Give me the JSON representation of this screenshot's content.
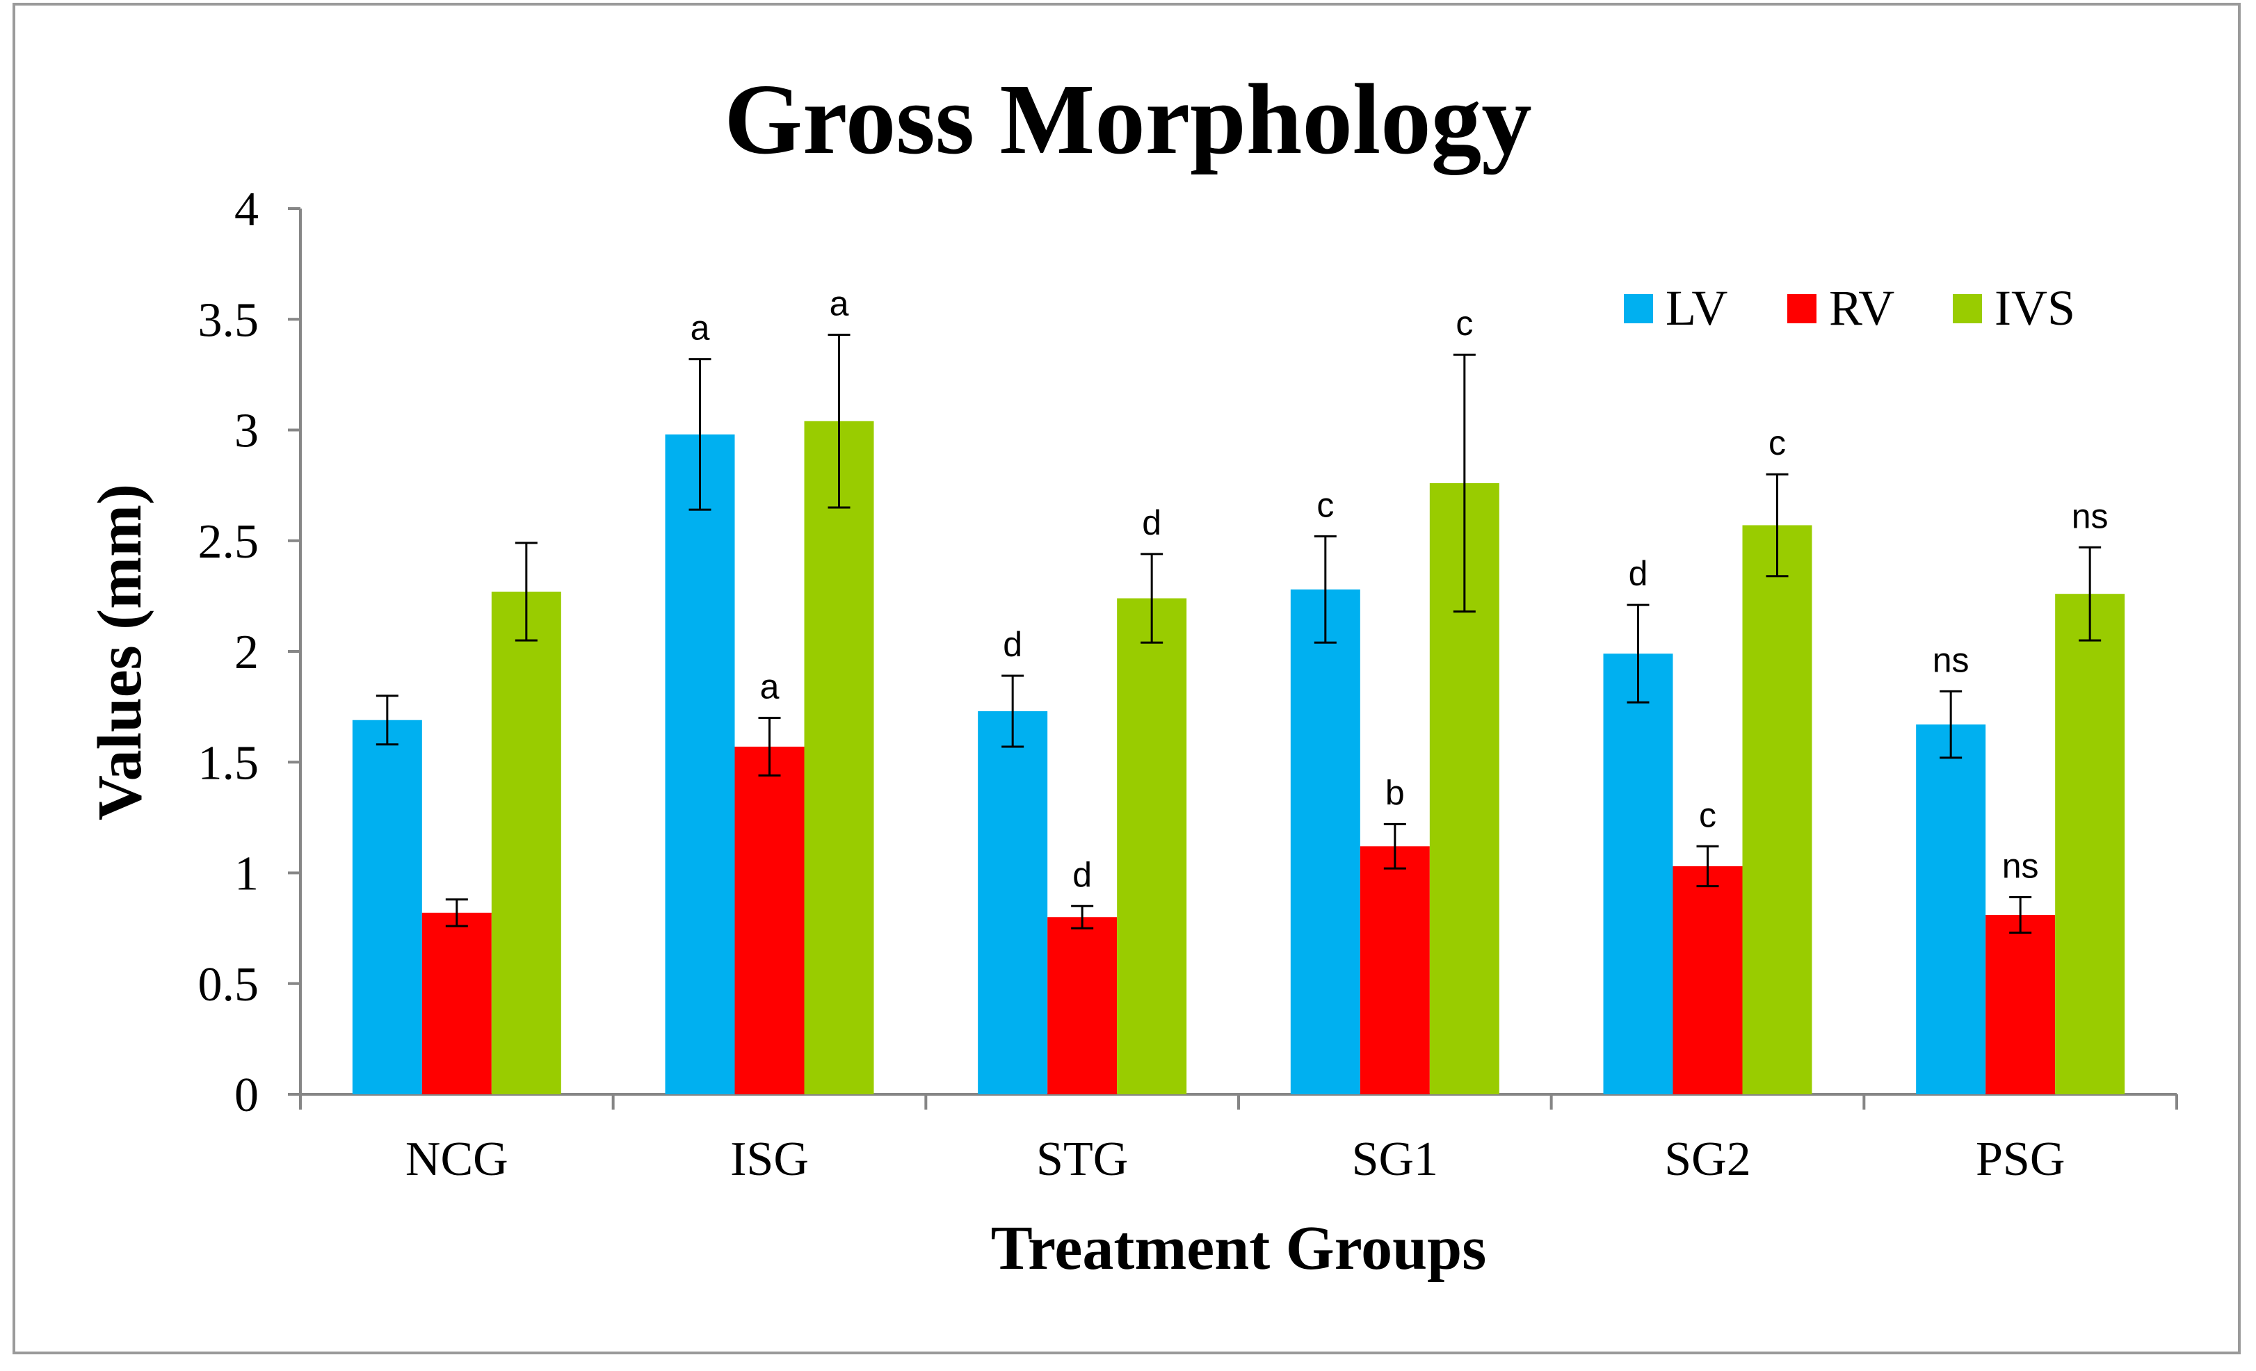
{
  "chart_data": {
    "type": "bar",
    "title": "Gross Morphology",
    "xlabel": "Treatment Groups",
    "ylabel": "Values (mm)",
    "ylim": [
      0,
      4
    ],
    "yticks": [
      "0",
      "0.5",
      "1",
      "1.5",
      "2",
      "2.5",
      "3",
      "3.5",
      "4"
    ],
    "categories": [
      "NCG",
      "ISG",
      "STG",
      "SG1",
      "SG2",
      "PSG"
    ],
    "grid": false,
    "legend_position": "top-right",
    "series": [
      {
        "name": "LV",
        "color": "#00B0F0",
        "values": [
          1.69,
          2.98,
          1.73,
          2.28,
          1.99,
          1.67
        ],
        "errors": [
          0.11,
          0.34,
          0.16,
          0.24,
          0.22,
          0.15
        ],
        "labels": [
          "",
          "a",
          "d",
          "c",
          "d",
          "ns"
        ]
      },
      {
        "name": "RV",
        "color": "#FF0000",
        "values": [
          0.82,
          1.57,
          0.8,
          1.12,
          1.03,
          0.81
        ],
        "errors": [
          0.06,
          0.13,
          0.05,
          0.1,
          0.09,
          0.08
        ],
        "labels": [
          "",
          "a",
          "d",
          "b",
          "c",
          "ns"
        ]
      },
      {
        "name": "IVS",
        "color": "#99CC00",
        "values": [
          2.27,
          3.04,
          2.24,
          2.76,
          2.57,
          2.26
        ],
        "errors": [
          0.22,
          0.39,
          0.2,
          0.58,
          0.23,
          0.21
        ],
        "labels": [
          "",
          "a",
          "d",
          "c",
          "c",
          "ns"
        ]
      }
    ]
  }
}
